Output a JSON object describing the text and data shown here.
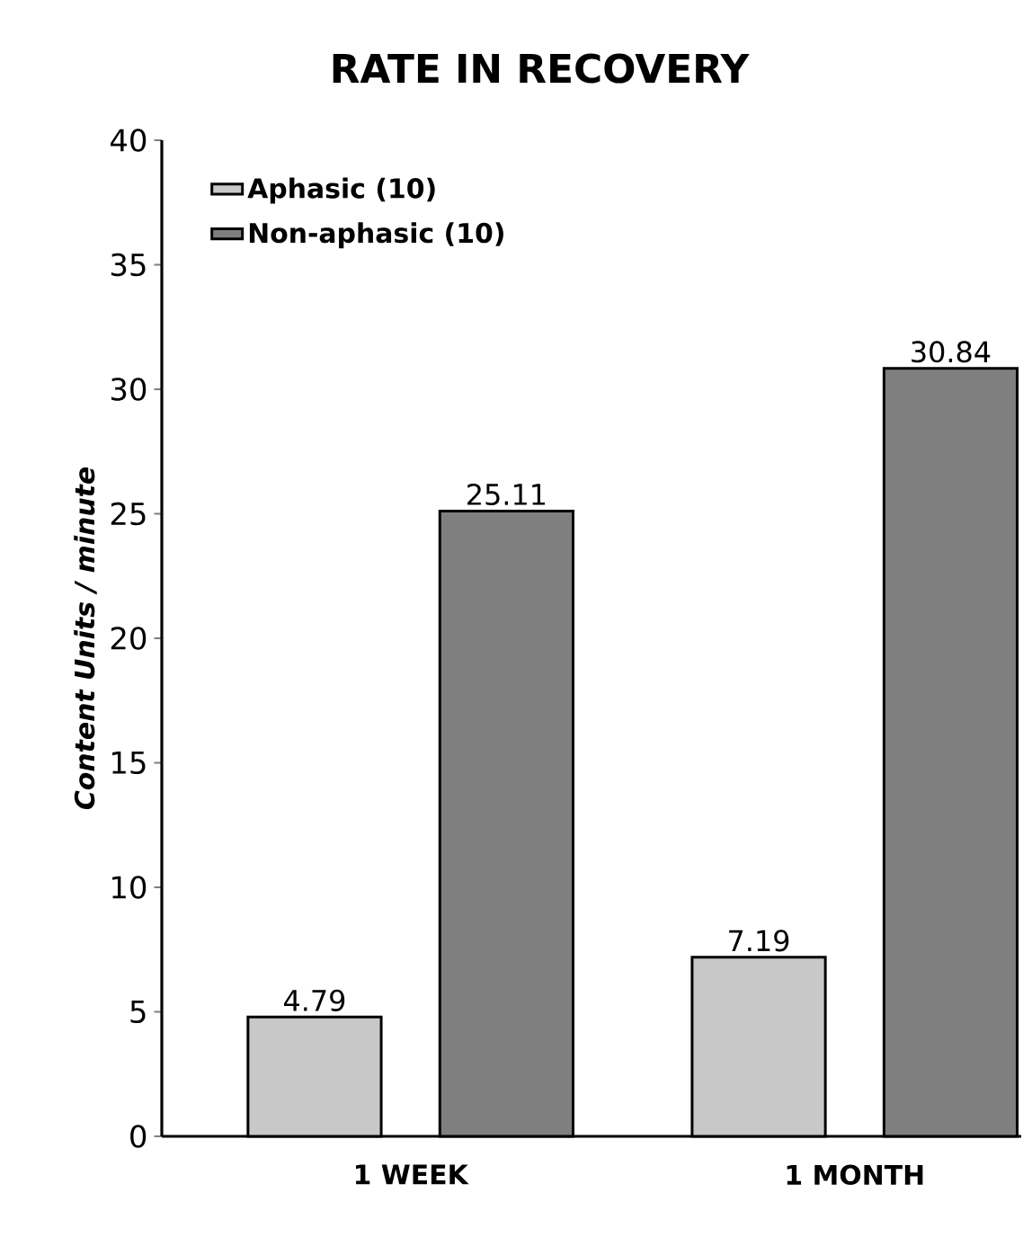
{
  "chart_data": {
    "type": "bar",
    "title": "RATE IN RECOVERY",
    "ylabel": "Content Units / minute",
    "categories": [
      "1 WEEK",
      "1 MONTH"
    ],
    "series": [
      {
        "name": "Aphasic (10)",
        "color": "#c8c8c8",
        "values": [
          4.79,
          7.19
        ]
      },
      {
        "name": "Non-aphasic (10)",
        "color": "#7f7f7f",
        "values": [
          25.11,
          30.84
        ]
      }
    ],
    "ylim": [
      0,
      40
    ],
    "yticks": [
      0,
      5,
      10,
      15,
      20,
      25,
      30,
      35,
      40
    ],
    "data_labels": true,
    "legend": "top left",
    "grid": false
  }
}
